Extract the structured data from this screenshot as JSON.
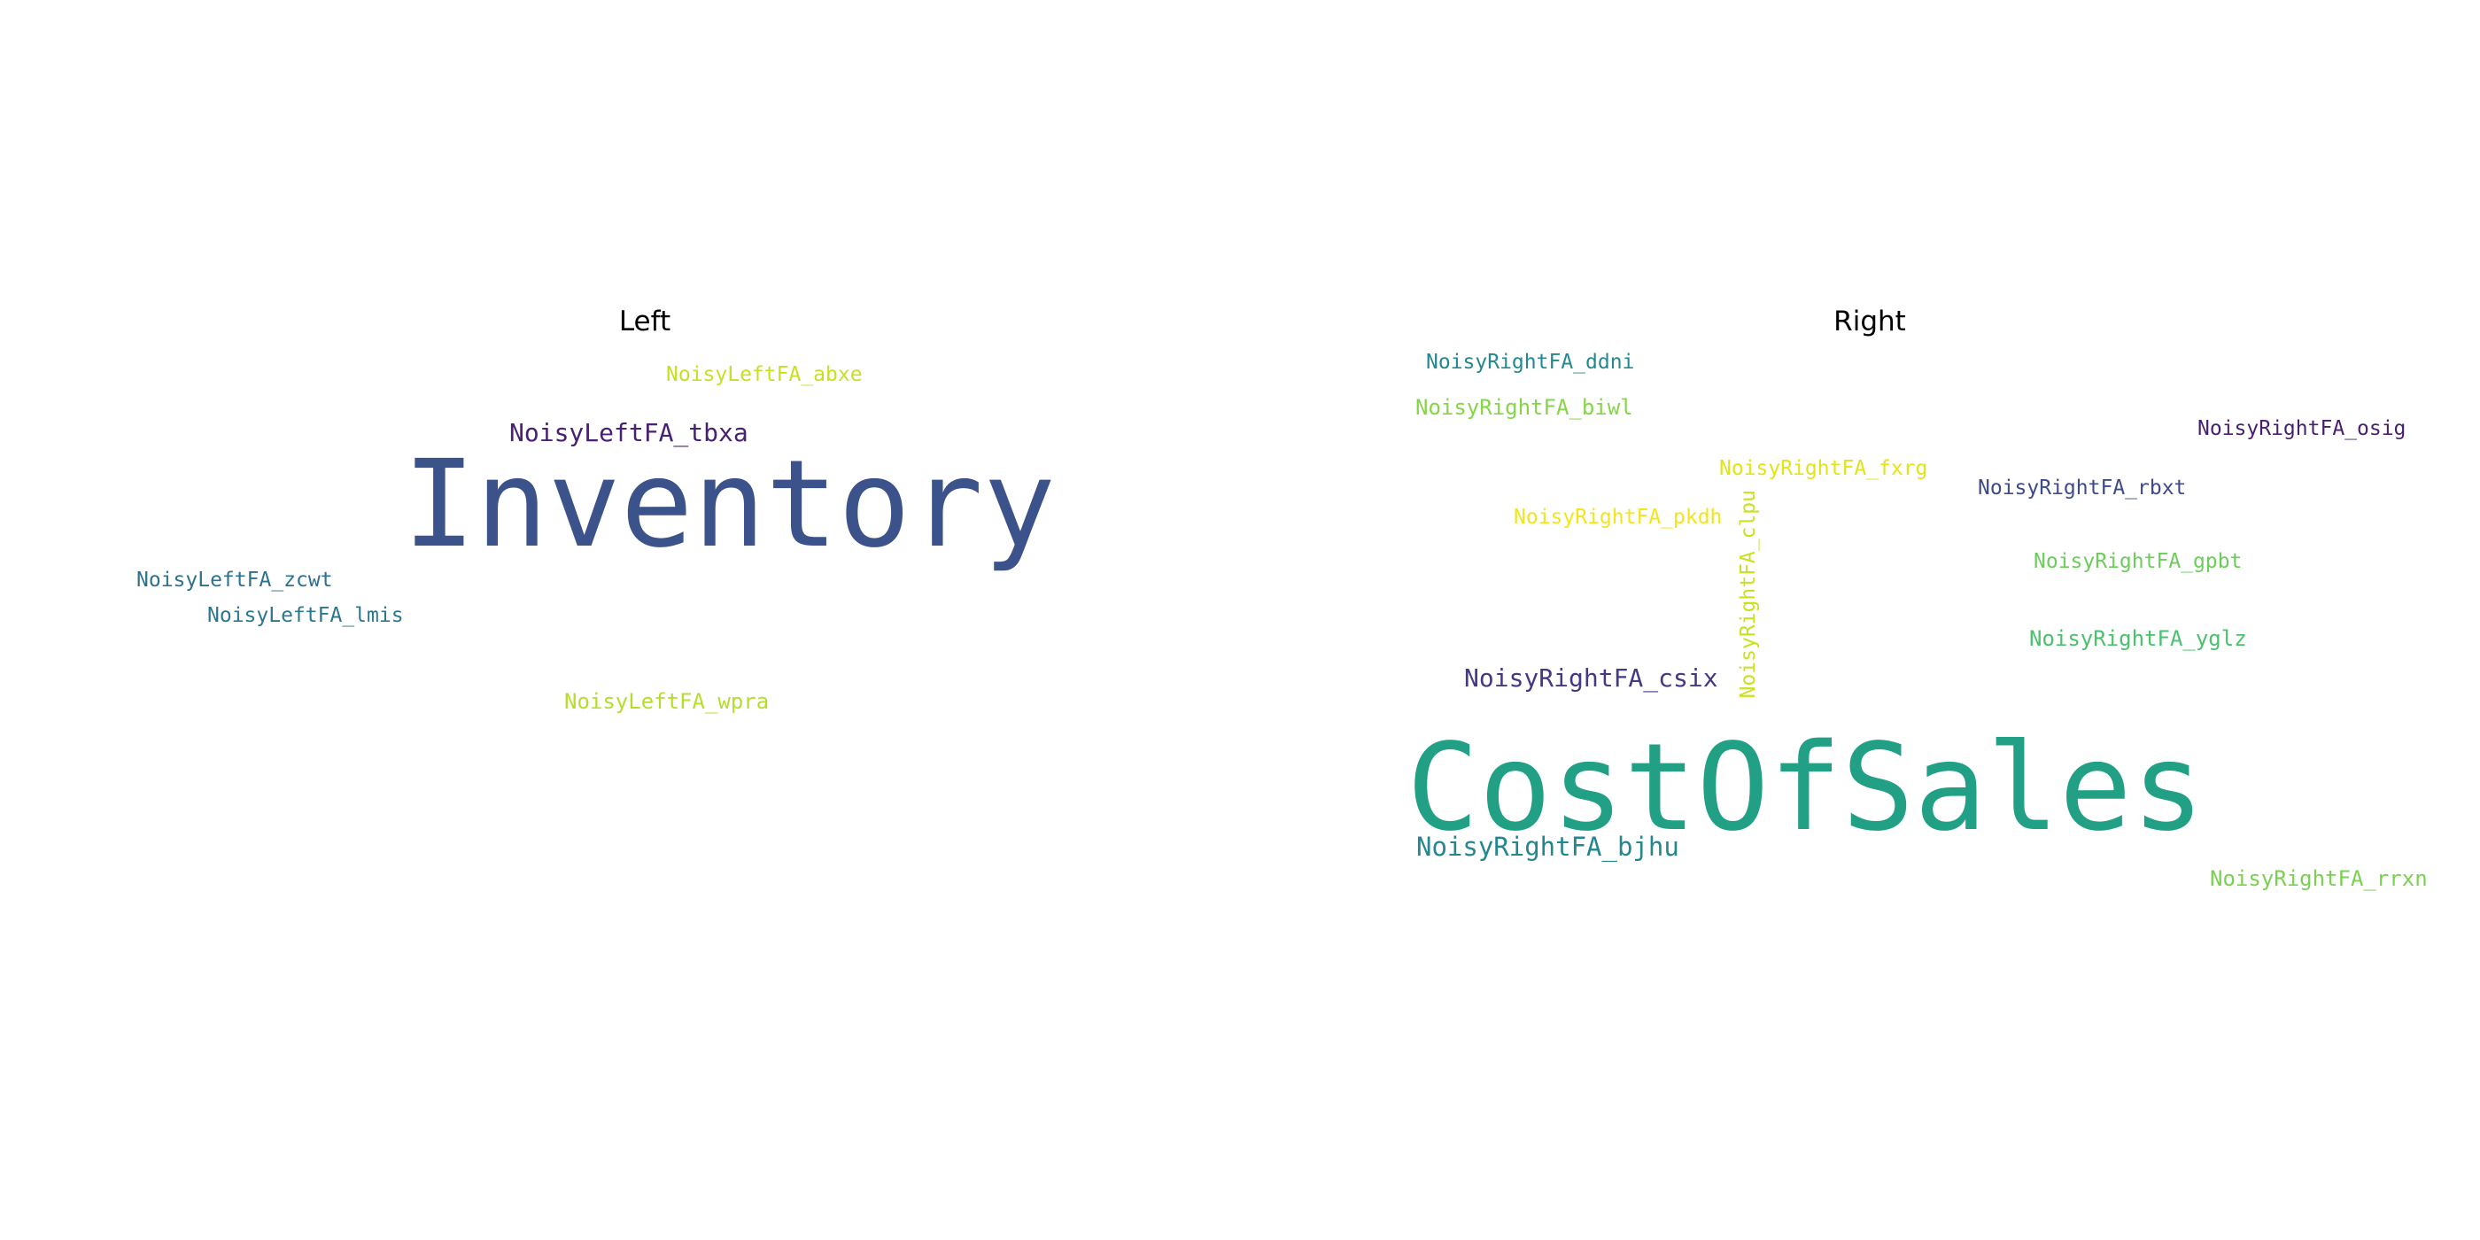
{
  "panels": [
    {
      "title": "Left",
      "words": [
        {
          "text": "Inventory",
          "color": "#3b528b"
        },
        {
          "text": "NoisyLeftFA_abxe",
          "color": "#c8e020"
        },
        {
          "text": "NoisyLeftFA_tbxa",
          "color": "#482173"
        },
        {
          "text": "NoisyLeftFA_zcwt",
          "color": "#2c728e"
        },
        {
          "text": "NoisyLeftFA_lmis",
          "color": "#2a788e"
        },
        {
          "text": "NoisyLeftFA_wpra",
          "color": "#b5de2b"
        }
      ]
    },
    {
      "title": "Right",
      "words": [
        {
          "text": "CostOfSales",
          "color": "#21a085"
        },
        {
          "text": "NoisyRightFA_ddni",
          "color": "#23898e"
        },
        {
          "text": "NoisyRightFA_biwl",
          "color": "#86d549"
        },
        {
          "text": "NoisyRightFA_osig",
          "color": "#481f70"
        },
        {
          "text": "NoisyRightFA_fxrg",
          "color": "#e2e418"
        },
        {
          "text": "NoisyRightFA_rbxt",
          "color": "#3e4a89"
        },
        {
          "text": "NoisyRightFA_pkdh",
          "color": "#f1e51d"
        },
        {
          "text": "NoisyRightFA_clpu",
          "color": "#cae11f"
        },
        {
          "text": "NoisyRightFA_gpbt",
          "color": "#6ccd5a"
        },
        {
          "text": "NoisyRightFA_yglz",
          "color": "#4ac16d"
        },
        {
          "text": "NoisyRightFA_csix",
          "color": "#443983"
        },
        {
          "text": "NoisyRightFA_bjhu",
          "color": "#24868e"
        },
        {
          "text": "NoisyRightFA_rrxn",
          "color": "#7ad151"
        }
      ]
    }
  ]
}
